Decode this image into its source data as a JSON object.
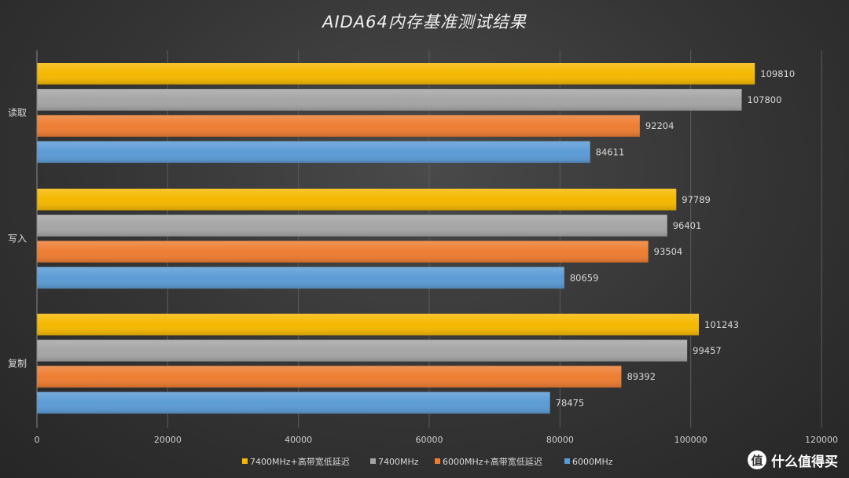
{
  "chart_data": {
    "type": "bar",
    "orientation": "horizontal",
    "title": "AIDA64内存基准测试结果",
    "categories": [
      "读取",
      "写入",
      "复制"
    ],
    "series": [
      {
        "name": "7400MHz+高带宽低延迟",
        "color": "#f5b800",
        "values": [
          109810,
          97789,
          101243
        ]
      },
      {
        "name": "7400MHz",
        "color": "#a5a5a5",
        "values": [
          107800,
          96401,
          99457
        ]
      },
      {
        "name": "6000MHz+高带宽低延迟",
        "color": "#ed7d31",
        "values": [
          92204,
          93504,
          89392
        ]
      },
      {
        "name": "6000MHz",
        "color": "#5b9bd5",
        "values": [
          84611,
          80659,
          78475
        ]
      }
    ],
    "xlim": [
      0,
      120000
    ],
    "xticks": [
      0,
      20000,
      40000,
      60000,
      80000,
      100000,
      120000
    ],
    "grid": true,
    "legend_position": "bottom"
  },
  "watermark": {
    "icon": "值",
    "text": "什么值得买"
  }
}
